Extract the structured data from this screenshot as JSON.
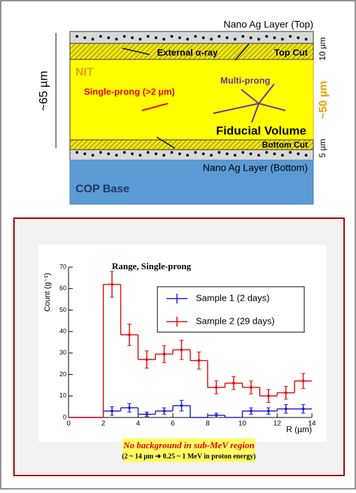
{
  "diagram": {
    "top_layer": "Nano Ag Layer (Top)",
    "alpha": "External α-ray",
    "top_cut": "Top Cut",
    "nit": "NIT",
    "single": "Single-prong (>2 µm)",
    "multi": "Multi-prong",
    "fiducial": "Fiducial Volume",
    "bottom_cut": "Bottom Cut",
    "bottom_layer": "Nano Ag Layer (Bottom)",
    "base": "COP Base",
    "thickness": "~65 µm",
    "top_cut_size": "10 µm",
    "fiducial_size": "~50 µm",
    "bottom_cut_size": "5 µm"
  },
  "chart_data": {
    "type": "histogram",
    "title": "Range, Single-prong",
    "x_label": "R (µm)",
    "y_label": "Count (g⁻¹)",
    "bins": [
      0,
      1,
      2,
      3,
      4,
      5,
      6,
      7,
      8,
      9,
      10,
      11,
      12,
      13,
      14
    ],
    "series": [
      {
        "name": "Sample 1 (2 days)",
        "color": "#1f1fd0",
        "values": [
          0,
          0,
          3,
          4.5,
          1.5,
          3,
          5.5,
          0,
          1,
          0,
          3,
          3,
          4,
          4
        ],
        "errors": [
          null,
          null,
          2,
          2,
          1,
          1.5,
          2.5,
          null,
          1,
          null,
          1.5,
          1.5,
          2,
          2
        ]
      },
      {
        "name": "Sample 2 (29 days)",
        "color": "#e01010",
        "values": [
          0,
          0,
          62,
          38.5,
          27,
          29.5,
          31.5,
          26.5,
          14,
          16,
          14,
          10,
          11.5,
          17
        ],
        "errors": [
          null,
          null,
          6,
          5,
          4,
          4,
          4.5,
          4,
          3,
          3,
          3,
          3,
          3,
          3.5
        ]
      }
    ],
    "xlim": [
      0,
      14
    ],
    "ylim": [
      0,
      70
    ],
    "xticks": [
      0,
      2,
      4,
      6,
      8,
      10,
      12,
      14
    ],
    "yticks": [
      0,
      10,
      20,
      30,
      40,
      50,
      60,
      70
    ],
    "note": "No background in sub-MeV region",
    "note_detail": "(2 ~ 14 μm ➔ 0.25 ~ 1 MeV in proton energy)"
  }
}
